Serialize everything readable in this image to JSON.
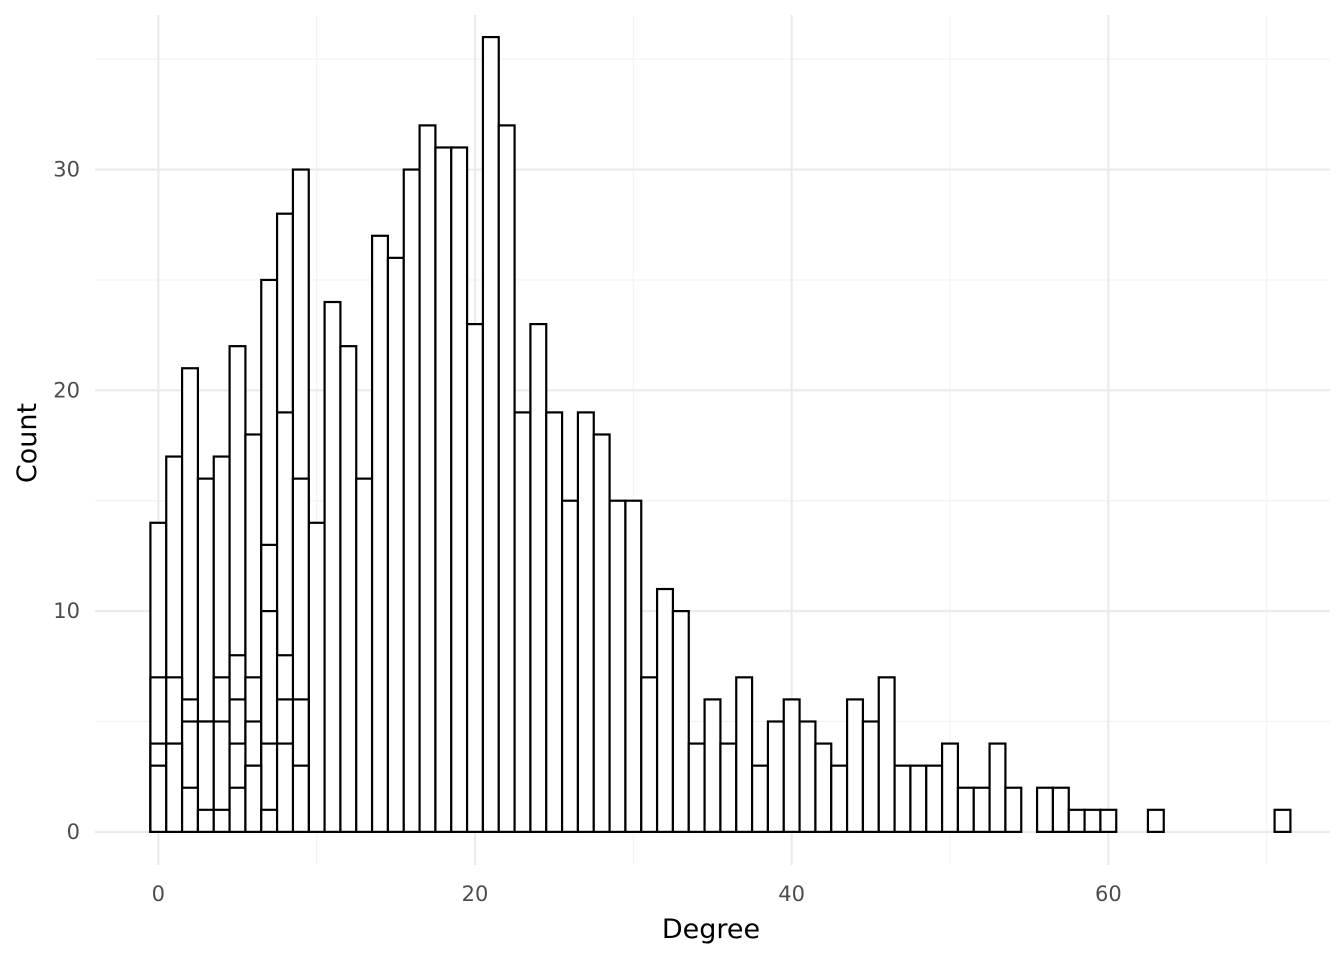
{
  "chart_data": {
    "type": "bar",
    "subtype": "histogram",
    "xlabel": "Degree",
    "ylabel": "Count",
    "xlim": [
      -4,
      74
    ],
    "ylim": [
      0,
      37
    ],
    "x_ticks": [
      0,
      20,
      40,
      60
    ],
    "y_ticks": [
      0,
      10,
      20,
      30
    ],
    "grid": true,
    "bar_fill": "#ffffff",
    "bar_stroke": "#000000",
    "series": [
      {
        "x": [
          0,
          1,
          2,
          3,
          4,
          5,
          6,
          7,
          8,
          9,
          10,
          11,
          12,
          13,
          14,
          15,
          16,
          17,
          18,
          19,
          20,
          21,
          22,
          23,
          24,
          25,
          26,
          27,
          28,
          29,
          30,
          31,
          32,
          33,
          34,
          35,
          36,
          37,
          38,
          39,
          40,
          41,
          42,
          43,
          44,
          45,
          46,
          47,
          48,
          49,
          50,
          51,
          52,
          53,
          54,
          56,
          57,
          58,
          59,
          60,
          63,
          71
        ],
        "values": [
          14,
          17,
          21,
          16,
          17,
          22,
          18,
          25,
          28,
          30,
          14,
          24,
          22,
          16,
          27,
          26,
          30,
          32,
          31,
          31,
          23,
          36,
          32,
          19,
          23,
          19,
          15,
          19,
          18,
          15,
          15,
          7,
          11,
          10,
          4,
          6,
          4,
          7,
          3,
          5,
          6,
          5,
          4,
          3,
          6,
          5,
          7,
          3,
          3,
          3,
          4,
          2,
          2,
          4,
          2,
          2,
          2,
          1,
          1,
          1,
          1,
          1
        ]
      },
      {
        "x": [
          0,
          1,
          2,
          3,
          4,
          5,
          6,
          7,
          8,
          9
        ],
        "values": [
          7,
          7,
          6,
          5,
          7,
          8,
          7,
          13,
          19,
          16
        ]
      },
      {
        "x": [
          0,
          1,
          2,
          3,
          4,
          5,
          6,
          7,
          8,
          9
        ],
        "values": [
          4,
          4,
          5,
          5,
          5,
          6,
          5,
          10,
          8,
          6
        ]
      },
      {
        "x": [
          0,
          1,
          2,
          3,
          4,
          5,
          6,
          7,
          8,
          9
        ],
        "values": [
          3,
          4,
          2,
          1,
          1,
          4,
          3,
          4,
          6,
          3
        ]
      },
      {
        "x": [
          5,
          6,
          7,
          8
        ],
        "values": [
          2,
          3,
          1,
          4
        ]
      }
    ]
  }
}
